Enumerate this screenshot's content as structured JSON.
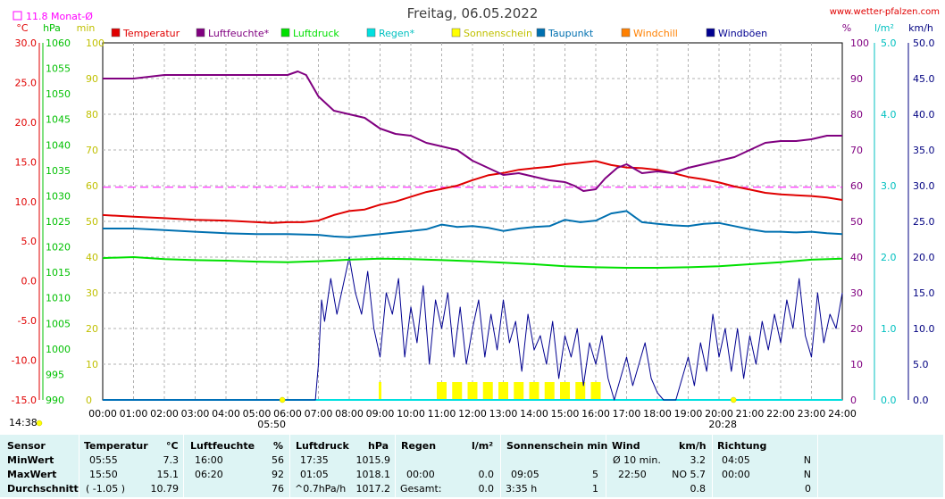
{
  "page": {
    "date_title": "Freitag, 06.05.2022",
    "site": "www.wetter-pfalzen.com",
    "month_avg_label": "11.8 Monat-Ø",
    "sunrise_time": "05:50",
    "sunset_time": "20:28",
    "start_time": "14:38"
  },
  "colors": {
    "temperatur": "#e00000",
    "luftfeuchte": "#800080",
    "luftdruck": "#00e000",
    "regen": "#00e0e0",
    "sonnenschein": "#ffff00",
    "taupunkt": "#0070b0",
    "windchill": "#ff8000",
    "windboen": "#000090"
  },
  "chart_data": {
    "type": "line",
    "title": "Freitag, 06.05.2022",
    "x_labels": [
      "00:00",
      "01:00",
      "02:00",
      "03:00",
      "04:00",
      "05:00",
      "06:00",
      "07:00",
      "08:00",
      "09:00",
      "10:00",
      "11:00",
      "12:00",
      "13:00",
      "14:00",
      "15:00",
      "16:00",
      "17:00",
      "18:00",
      "19:00",
      "20:00",
      "21:00",
      "22:00",
      "23:00",
      "24:00"
    ],
    "x_range_hours": [
      0,
      24
    ],
    "legend": [
      {
        "name": "Temperatur",
        "color": "#e00000"
      },
      {
        "name": "Luftfeuchte*",
        "color": "#800080"
      },
      {
        "name": "Luftdruck",
        "color": "#00e000"
      },
      {
        "name": "Regen*",
        "color": "#00e0e0"
      },
      {
        "name": "Sonnenschein",
        "color": "#ffff00"
      },
      {
        "name": "Taupunkt",
        "color": "#0070b0"
      },
      {
        "name": "Windchill",
        "color": "#ff8000"
      },
      {
        "name": "Windböen",
        "color": "#000090"
      }
    ],
    "axes": {
      "temperature": {
        "unit": "°C",
        "range": [
          -15,
          30
        ],
        "ticks": [
          "30.0",
          "25.0",
          "20.0",
          "15.0",
          "10.0",
          "5.0",
          "0.0",
          "-5.0",
          "-10.0",
          "-15.0"
        ]
      },
      "pressure": {
        "unit": "hPa",
        "range": [
          990,
          1060
        ],
        "ticks": [
          "1060",
          "1055",
          "1050",
          "1045",
          "1040",
          "1035",
          "1030",
          "1025",
          "1020",
          "1015",
          "1010",
          "1005",
          "1000",
          "995",
          "990"
        ]
      },
      "sunshine_min": {
        "unit": "min",
        "range": [
          0,
          100
        ],
        "ticks": [
          "100",
          "90",
          "80",
          "70",
          "60",
          "50",
          "40",
          "30",
          "20",
          "10",
          "0"
        ]
      },
      "humidity": {
        "unit": "%",
        "range": [
          0,
          100
        ],
        "ticks": [
          "100",
          "90",
          "80",
          "70",
          "60",
          "50",
          "40",
          "30",
          "20",
          "10",
          "0"
        ]
      },
      "rain": {
        "unit": "l/m²",
        "range": [
          0,
          5
        ],
        "ticks": [
          "5.0",
          "4.0",
          "3.0",
          "2.0",
          "1.0",
          "0.0"
        ]
      },
      "wind": {
        "unit": "km/h",
        "range": [
          0,
          50
        ],
        "ticks": [
          "50.0",
          "45.0",
          "40.0",
          "35.0",
          "30.0",
          "25.0",
          "20.0",
          "15.0",
          "10.0",
          "5.0",
          "0.0"
        ]
      }
    },
    "reference_lines": [
      {
        "name": "11.8 Monat-Ø",
        "axis": "temperature",
        "value": 11.8
      }
    ],
    "series": [
      {
        "name": "Temperatur",
        "axis": "temperature",
        "x": [
          0,
          1,
          2,
          3,
          4,
          5,
          5.5,
          6,
          6.5,
          7,
          7.5,
          8,
          8.5,
          9,
          9.5,
          10,
          10.5,
          11,
          11.5,
          12,
          12.5,
          13,
          13.5,
          14,
          14.5,
          15,
          15.5,
          16,
          16.5,
          17,
          17.5,
          18,
          18.5,
          19,
          19.5,
          20,
          20.5,
          21,
          21.5,
          22,
          22.5,
          23,
          23.5,
          24
        ],
        "y": [
          8.3,
          8.1,
          7.9,
          7.7,
          7.6,
          7.4,
          7.3,
          7.4,
          7.4,
          7.6,
          8.3,
          8.8,
          9.0,
          9.6,
          10.0,
          10.6,
          11.2,
          11.6,
          12.0,
          12.7,
          13.3,
          13.6,
          14.0,
          14.2,
          14.4,
          14.7,
          14.9,
          15.1,
          14.6,
          14.3,
          14.2,
          14.0,
          13.6,
          13.1,
          12.8,
          12.4,
          11.9,
          11.5,
          11.1,
          10.9,
          10.8,
          10.7,
          10.5,
          10.2
        ]
      },
      {
        "name": "Luftfeuchte*",
        "axis": "humidity",
        "x": [
          0,
          0.5,
          1,
          1.5,
          2,
          3,
          4,
          5,
          6,
          6.33,
          6.6,
          7,
          7.5,
          8,
          8.5,
          9,
          9.5,
          10,
          10.5,
          11,
          11.5,
          12,
          12.5,
          13,
          13.5,
          14,
          14.5,
          15,
          15.3,
          15.6,
          16,
          16.3,
          16.7,
          17,
          17.5,
          18,
          18.5,
          19,
          19.5,
          20,
          20.5,
          21,
          21.5,
          22,
          22.5,
          23,
          23.5,
          24
        ],
        "y": [
          90,
          90,
          90,
          90.5,
          91,
          91,
          91,
          91,
          91,
          92,
          91,
          85,
          81,
          80,
          79,
          76,
          74.5,
          74,
          72,
          71,
          70,
          67,
          65,
          63,
          63.5,
          62.5,
          61.5,
          61,
          60,
          58.5,
          59,
          62,
          65,
          66,
          63.5,
          64,
          63.5,
          65,
          66,
          67,
          68,
          70,
          72,
          72.5,
          72.5,
          73,
          74,
          74
        ]
      },
      {
        "name": "Luftdruck",
        "axis": "pressure",
        "x": [
          0,
          1,
          2,
          3,
          4,
          5,
          6,
          7,
          8,
          9,
          10,
          11,
          12,
          13,
          14,
          15,
          16,
          17,
          18,
          19,
          20,
          21,
          22,
          23,
          24
        ],
        "y": [
          1017.8,
          1018.0,
          1017.6,
          1017.4,
          1017.3,
          1017.1,
          1017.0,
          1017.2,
          1017.5,
          1017.7,
          1017.6,
          1017.4,
          1017.2,
          1016.9,
          1016.6,
          1016.2,
          1016.0,
          1015.9,
          1015.9,
          1016.0,
          1016.2,
          1016.6,
          1017.0,
          1017.5,
          1017.7
        ]
      },
      {
        "name": "Regen*",
        "axis": "rain",
        "x": [
          0,
          24
        ],
        "y": [
          0,
          0
        ]
      },
      {
        "name": "Taupunkt",
        "axis": "temperature",
        "x": [
          0,
          1,
          2,
          3,
          4,
          5,
          6,
          7,
          7.5,
          8,
          8.5,
          9,
          9.5,
          10,
          10.5,
          11,
          11.5,
          12,
          12.5,
          13,
          13.5,
          14,
          14.5,
          15,
          15.5,
          16,
          16.5,
          17,
          17.5,
          18,
          18.5,
          19,
          19.5,
          20,
          20.5,
          21,
          21.5,
          22,
          22.5,
          23,
          23.5,
          24
        ],
        "y": [
          6.6,
          6.6,
          6.4,
          6.2,
          6.0,
          5.9,
          5.9,
          5.8,
          5.6,
          5.5,
          5.7,
          5.9,
          6.1,
          6.3,
          6.5,
          7.1,
          6.8,
          6.9,
          6.7,
          6.3,
          6.6,
          6.8,
          6.9,
          7.7,
          7.4,
          7.6,
          8.5,
          8.8,
          7.4,
          7.2,
          7.0,
          6.9,
          7.2,
          7.3,
          6.9,
          6.5,
          6.2,
          6.2,
          6.1,
          6.2,
          6.0,
          5.9
        ]
      },
      {
        "name": "Windböen",
        "axis": "wind",
        "x": [
          0,
          6.9,
          7.0,
          7.1,
          7.2,
          7.4,
          7.6,
          7.8,
          8.0,
          8.2,
          8.4,
          8.6,
          8.8,
          9.0,
          9.2,
          9.4,
          9.6,
          9.8,
          10.0,
          10.2,
          10.4,
          10.6,
          10.8,
          11.0,
          11.2,
          11.4,
          11.6,
          11.8,
          12.0,
          12.2,
          12.4,
          12.6,
          12.8,
          13.0,
          13.2,
          13.4,
          13.6,
          13.8,
          14.0,
          14.2,
          14.4,
          14.6,
          14.8,
          15.0,
          15.2,
          15.4,
          15.6,
          15.8,
          16.0,
          16.2,
          16.4,
          16.6,
          16.8,
          17.0,
          17.2,
          17.4,
          17.6,
          17.8,
          18.0,
          18.2,
          18.4,
          18.6,
          18.8,
          19.0,
          19.2,
          19.4,
          19.6,
          19.8,
          20.0,
          20.2,
          20.4,
          20.6,
          20.8,
          21.0,
          21.2,
          21.4,
          21.6,
          21.8,
          22.0,
          22.2,
          22.4,
          22.6,
          22.8,
          23.0,
          23.2,
          23.4,
          23.6,
          23.8,
          24.0
        ],
        "y": [
          0,
          0,
          5,
          14,
          11,
          17,
          12,
          16,
          20,
          15,
          12,
          18,
          10,
          6,
          15,
          12,
          17,
          6,
          13,
          8,
          16,
          5,
          14,
          10,
          15,
          6,
          13,
          5,
          10,
          14,
          6,
          12,
          7,
          14,
          8,
          11,
          4,
          12,
          7,
          9,
          5,
          11,
          3,
          9,
          6,
          10,
          2,
          8,
          5,
          9,
          3,
          0,
          3,
          6,
          2,
          5,
          8,
          3,
          1,
          0,
          0,
          0,
          3,
          6,
          2,
          8,
          4,
          12,
          6,
          10,
          4,
          10,
          3,
          9,
          5,
          11,
          7,
          12,
          8,
          14,
          10,
          17,
          9,
          6,
          15,
          8,
          12,
          10,
          15
        ]
      },
      {
        "name": "Sonnenschein",
        "axis": "sunshine_min",
        "x": [
          9.0,
          11.0,
          11.5,
          12.0,
          12.5,
          13.0,
          13.5,
          14.0,
          14.5,
          15.0,
          15.5,
          16.0
        ],
        "y": [
          5,
          5,
          5,
          5,
          5,
          5,
          5,
          5,
          5,
          5,
          5,
          5
        ]
      }
    ]
  },
  "stats": {
    "headers": {
      "sensor": "Sensor",
      "temp": "Temperatur",
      "temp_unit": "°C",
      "hum": "Luftfeuchte",
      "hum_unit": "%",
      "press": "Luftdruck",
      "press_unit": "hPa",
      "rain": "Regen",
      "rain_unit": "l/m²",
      "sun": "Sonnenschein min",
      "wind": "Wind",
      "wind_unit": "km/h",
      "dir": "Richtung"
    },
    "rows": [
      {
        "label": "MinWert",
        "temp_time": "05:55",
        "temp_val": "7.3",
        "hum_time": "16:00",
        "hum_val": "56",
        "press_time": "17:35",
        "press_val": "1015.9",
        "rain_time": "",
        "rain_val": "",
        "sun_time": "",
        "sun_val": "",
        "wind_time": "Ø 10 min.",
        "wind_val": "3.2",
        "dir_time": "04:05",
        "dir_val": "N"
      },
      {
        "label": "MaxWert",
        "temp_time": "15:50",
        "temp_val": "15.1",
        "hum_time": "06:20",
        "hum_val": "92",
        "press_time": "01:05",
        "press_val": "1018.1",
        "rain_time": "00:00",
        "rain_val": "0.0",
        "sun_time": "09:05",
        "sun_val": "5",
        "wind_time": "22:50",
        "wind_val": "NO 5.7",
        "dir_time": "00:00",
        "dir_val": "N"
      },
      {
        "label": "Durchschnitt",
        "temp_time": "( -1.05 )",
        "temp_val": "10.79",
        "hum_time": "",
        "hum_val": "76",
        "press_time": "^0.7hPa/h",
        "press_val": "1017.2",
        "rain_time": "Gesamt:",
        "rain_val": "0.0",
        "sun_time": "3:35 h",
        "sun_val": "1",
        "wind_time": "",
        "wind_val": "0.8",
        "dir_time": "",
        "dir_val": "0"
      }
    ]
  }
}
